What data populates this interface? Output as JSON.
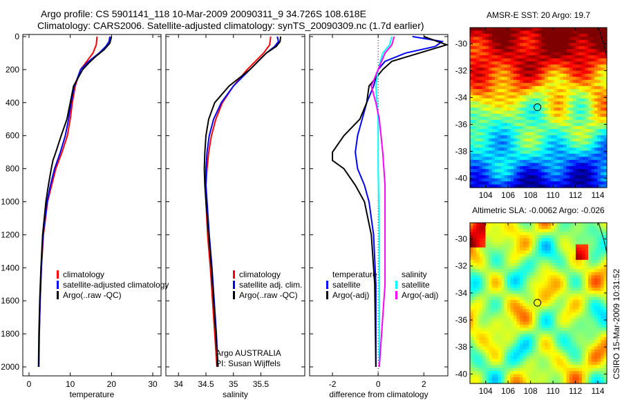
{
  "title": {
    "line1": "Argo profile: CS 5901141_118 10-Mar-2009 20090311_9 34.726S 108.618E",
    "line2": "Climatology: CARS2006. Satellite-adjusted climatology: synTS_20090309.nc (1.7d earlier)"
  },
  "colors": {
    "clim": "#ff0000",
    "sat": "#0000ff",
    "argo": "#000000",
    "sal_sat": "#00ffff",
    "sal_argo": "#ff00ff"
  },
  "chart_data": [
    {
      "type": "line",
      "xlabel": "temperature",
      "ylabel": "",
      "xlim": [
        -1.5,
        32
      ],
      "ylim": [
        2000,
        0
      ],
      "xticks": [
        0,
        10,
        20,
        30
      ],
      "yticks": [
        0,
        200,
        400,
        600,
        800,
        1000,
        1200,
        1400,
        1600,
        1800,
        2000
      ],
      "legend": [
        "climatology",
        "satellite-adjusted climatology",
        "Argo(..raw -QC)"
      ],
      "series": [
        {
          "name": "climatology",
          "color": "clim",
          "depth": [
            0,
            50,
            100,
            150,
            200,
            300,
            400,
            500,
            600,
            700,
            800,
            900,
            1000,
            1200,
            1400,
            1600,
            1800
          ],
          "values": [
            16.5,
            16.3,
            15.5,
            14,
            12.5,
            11.2,
            10.5,
            10,
            9.3,
            8,
            6.5,
            5.5,
            4.5,
            3.5,
            3,
            2.7,
            2.5
          ]
        },
        {
          "name": "satellite-adjusted climatology",
          "color": "sat",
          "depth": [
            0,
            30,
            60,
            100,
            150,
            200,
            300,
            400,
            500,
            600,
            700,
            800,
            900,
            1000,
            1200,
            1400,
            1600,
            1800,
            2000
          ],
          "values": [
            19.6,
            19.4,
            18.6,
            17,
            14.5,
            12.5,
            11,
            10.2,
            9.6,
            8.8,
            7.6,
            6.2,
            5.2,
            4.4,
            3.4,
            3,
            2.7,
            2.5,
            2.4
          ]
        },
        {
          "name": "Argo(..raw -QC)",
          "color": "argo",
          "depth": [
            0,
            40,
            80,
            120,
            160,
            200,
            300,
            400,
            500,
            600,
            700,
            750,
            800,
            900,
            1000,
            1200,
            1400,
            1600,
            1800,
            2000
          ],
          "values": [
            20,
            19.6,
            18.2,
            16.2,
            14.5,
            13,
            10.8,
            10,
            9.2,
            7.8,
            6.5,
            5.8,
            5.4,
            4.7,
            4.1,
            3.3,
            2.9,
            2.6,
            2.4,
            2.3
          ]
        }
      ]
    },
    {
      "type": "line",
      "xlabel": "salinity",
      "xlim": [
        33.77,
        36.3
      ],
      "ylim": [
        2000,
        0
      ],
      "xticks": [
        34,
        34.5,
        35,
        35.5
      ],
      "legend": [
        "climatology",
        "satellite adj. clim.",
        "Argo(..raw -QC)"
      ],
      "annotation": [
        "Argo AUSTRALIA",
        "PI: Susan Wijffels"
      ],
      "series": [
        {
          "name": "climatology",
          "color": "clim",
          "depth": [
            0,
            50,
            100,
            200,
            300,
            400,
            500,
            600,
            700,
            800,
            900,
            1000,
            1200,
            1400,
            1600,
            1800,
            2000
          ],
          "values": [
            35.68,
            35.66,
            35.55,
            35.25,
            35,
            34.8,
            34.68,
            34.6,
            34.55,
            34.52,
            34.5,
            34.5,
            34.53,
            34.58,
            34.62,
            34.66,
            34.7
          ]
        },
        {
          "name": "satellite adj. clim.",
          "color": "sat",
          "depth": [
            0,
            30,
            60,
            100,
            200,
            300,
            400,
            500,
            600,
            700,
            800,
            900,
            1000,
            1200,
            1400,
            1600,
            1800,
            2000
          ],
          "values": [
            35.8,
            35.82,
            35.75,
            35.6,
            35.3,
            35,
            34.78,
            34.64,
            34.56,
            34.52,
            34.5,
            34.5,
            34.52,
            34.56,
            34.61,
            34.65,
            34.69,
            34.72
          ]
        },
        {
          "name": "Argo(..raw -QC)",
          "color": "argo",
          "depth": [
            0,
            30,
            60,
            100,
            200,
            300,
            400,
            500,
            600,
            700,
            800,
            900,
            1000,
            1200,
            1400,
            1600,
            1800,
            2000
          ],
          "values": [
            35.86,
            35.85,
            35.78,
            35.6,
            35.3,
            34.92,
            34.66,
            34.55,
            34.5,
            34.48,
            34.47,
            34.48,
            34.5,
            34.55,
            34.6,
            34.64,
            34.68,
            34.72
          ]
        }
      ]
    },
    {
      "type": "line",
      "xlabel": "difference from climatology",
      "xlim": [
        -3,
        3.05
      ],
      "ylim": [
        2000,
        0
      ],
      "xticks": [
        -2,
        0,
        2
      ],
      "legend_temperature": [
        "temperature",
        "satellite",
        "Argo(-adj)"
      ],
      "legend_salinity": [
        "salinity",
        "satellite",
        "Argo(-adj)"
      ],
      "series": [
        {
          "name": "temperature satellite",
          "color": "sat",
          "depth": [
            0,
            30,
            60,
            100,
            150,
            200,
            300,
            400,
            500,
            600,
            700,
            800,
            900,
            1000,
            1200,
            1500,
            2000
          ],
          "values": [
            1.5,
            2.8,
            2.5,
            1.2,
            0.3,
            0,
            -0.2,
            -0.5,
            -0.7,
            -0.9,
            -1,
            -0.9,
            -0.6,
            -0.4,
            -0.2,
            -0.1,
            -0.1
          ]
        },
        {
          "name": "temperature Argo(-adj)",
          "color": "argo",
          "depth": [
            0,
            50,
            100,
            150,
            200,
            300,
            400,
            500,
            600,
            700,
            750,
            800,
            900,
            1000,
            1200,
            1500,
            2000
          ],
          "values": [
            2,
            3,
            1.8,
            0.6,
            0.2,
            -0.4,
            -0.5,
            -0.8,
            -1.5,
            -2,
            -2,
            -1.5,
            -1,
            -0.6,
            -0.3,
            -0.15,
            -0.1
          ]
        },
        {
          "name": "salinity satellite",
          "color": "sal_sat",
          "depth": [
            0,
            50,
            100,
            200,
            300,
            500,
            800,
            1200,
            2000
          ],
          "values": [
            0.6,
            0.5,
            0.2,
            0,
            -0.1,
            0,
            0,
            0.05,
            0.05
          ]
        },
        {
          "name": "salinity Argo(-adj)",
          "color": "sal_argo",
          "depth": [
            0,
            50,
            100,
            200,
            300,
            400,
            500,
            700,
            900,
            1100,
            1500,
            2000
          ],
          "values": [
            0.7,
            0.6,
            0.3,
            0,
            -0.3,
            -0.1,
            0.05,
            0.2,
            0.3,
            0.3,
            0.3,
            0.05
          ]
        }
      ]
    },
    {
      "type": "heatmap",
      "title": "AMSR-E SST: 20 Argo: 19.7",
      "xlim": [
        102.6,
        114.8
      ],
      "ylim": [
        -28.8,
        -40.7
      ],
      "xticks": [
        104,
        106,
        108,
        110,
        112,
        114
      ],
      "yticks": [
        -30,
        -32,
        -34,
        -36,
        -38,
        -40
      ],
      "marker": [
        108.618,
        -34.726
      ]
    },
    {
      "type": "heatmap",
      "title": "Altimetric SLA: -0.0062 Argo: -0.026",
      "xlim": [
        102.6,
        114.8
      ],
      "ylim": [
        -28.8,
        -40.7
      ],
      "xticks": [
        104,
        106,
        108,
        110,
        112,
        114
      ],
      "yticks": [
        -30,
        -32,
        -34,
        -36,
        -38,
        -40
      ],
      "marker": [
        108.618,
        -34.726
      ]
    }
  ],
  "footer": "CSIRO 15-Mar-2009 10:31:52"
}
